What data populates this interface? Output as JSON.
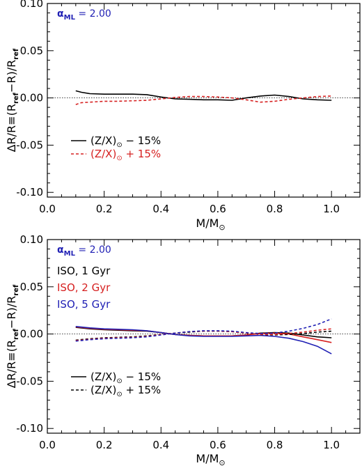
{
  "chart_data": [
    {
      "type": "line",
      "xlim": [
        0.0,
        1.1
      ],
      "ylim": [
        -0.105,
        0.1
      ],
      "xticks": [
        "0.0",
        "0.2",
        "0.4",
        "0.6",
        "0.8",
        "1.0"
      ],
      "yticks": [
        "-0.10",
        "-0.05",
        "0.00",
        "0.05",
        "0.10"
      ],
      "xlabel": "M/M⊙",
      "ylabel": "ΔR/R≡(Rref−R)/Rref",
      "annotation": {
        "alpha": "α",
        "sub": "ML",
        "value": " = 2.00",
        "color": "#1f1fb4"
      },
      "zero_line": true,
      "legend": [
        {
          "label": "(Z/X)⊙ − 15%",
          "style": "solid",
          "color": "#000000"
        },
        {
          "label": "(Z/X)⊙ + 15%",
          "style": "dashed",
          "color": "#d62020"
        }
      ],
      "series": [
        {
          "style": "solid",
          "color": "#000000",
          "x": [
            0.1,
            0.12,
            0.15,
            0.2,
            0.25,
            0.3,
            0.35,
            0.4,
            0.45,
            0.5,
            0.55,
            0.6,
            0.65,
            0.7,
            0.75,
            0.8,
            0.85,
            0.9,
            0.95,
            1.0
          ],
          "y": [
            0.0075,
            0.006,
            0.0045,
            0.004,
            0.004,
            0.004,
            0.0035,
            0.001,
            -0.001,
            -0.0015,
            -0.002,
            -0.002,
            -0.0025,
            0.0,
            0.002,
            0.003,
            0.0015,
            -0.001,
            -0.002,
            -0.0025
          ]
        },
        {
          "style": "dashed",
          "color": "#d62020",
          "x": [
            0.1,
            0.12,
            0.15,
            0.2,
            0.25,
            0.3,
            0.35,
            0.4,
            0.45,
            0.5,
            0.55,
            0.6,
            0.65,
            0.7,
            0.75,
            0.8,
            0.85,
            0.9,
            0.95,
            1.0
          ],
          "y": [
            -0.007,
            -0.005,
            -0.0045,
            -0.0035,
            -0.0035,
            -0.003,
            -0.0025,
            -0.001,
            0.0005,
            0.0015,
            0.0015,
            0.001,
            0.0,
            -0.002,
            -0.0045,
            -0.0035,
            -0.0015,
            0.0,
            0.0015,
            0.002
          ]
        }
      ]
    },
    {
      "type": "line",
      "xlim": [
        0.0,
        1.1
      ],
      "ylim": [
        -0.105,
        0.1
      ],
      "xticks": [
        "0.0",
        "0.2",
        "0.4",
        "0.6",
        "0.8",
        "1.0"
      ],
      "yticks": [
        "-0.10",
        "-0.05",
        "0.00",
        "0.05",
        "0.10"
      ],
      "xlabel": "M/M⊙",
      "ylabel": "ΔR/R≡(Rref−R)/Rref",
      "annotation": {
        "alpha": "α",
        "sub": "ML",
        "value": " = 2.00",
        "color": "#1f1fb4"
      },
      "zero_line": true,
      "iso_labels": [
        {
          "text": "ISO,   1 Gyr",
          "color": "#000000"
        },
        {
          "text": "ISO,   2 Gyr",
          "color": "#d62020"
        },
        {
          "text": "ISO,   5 Gyr",
          "color": "#1f1fb4"
        }
      ],
      "legend": [
        {
          "label": "(Z/X)⊙ − 15%",
          "style": "solid",
          "color": "#000000"
        },
        {
          "label": "(Z/X)⊙ + 15%",
          "style": "dashed",
          "color": "#000000"
        }
      ],
      "series": [
        {
          "style": "solid",
          "color": "#000000",
          "x": [
            0.1,
            0.15,
            0.2,
            0.25,
            0.3,
            0.35,
            0.4,
            0.45,
            0.5,
            0.55,
            0.6,
            0.65,
            0.7,
            0.75,
            0.8,
            0.85,
            0.9,
            0.95,
            1.0
          ],
          "y": [
            0.007,
            0.0055,
            0.0045,
            0.004,
            0.0035,
            0.003,
            0.0015,
            -0.0005,
            -0.0015,
            -0.002,
            -0.002,
            -0.002,
            -0.001,
            0.001,
            0.0015,
            0.001,
            -0.001,
            -0.003,
            -0.004
          ]
        },
        {
          "style": "solid",
          "color": "#d62020",
          "x": [
            0.1,
            0.15,
            0.2,
            0.25,
            0.3,
            0.35,
            0.4,
            0.45,
            0.5,
            0.55,
            0.6,
            0.65,
            0.7,
            0.75,
            0.8,
            0.85,
            0.9,
            0.95,
            1.0
          ],
          "y": [
            0.0075,
            0.006,
            0.005,
            0.0045,
            0.004,
            0.0035,
            0.0015,
            -0.0005,
            -0.0015,
            -0.002,
            -0.002,
            -0.002,
            -0.001,
            0.0005,
            0.001,
            0.0,
            -0.003,
            -0.006,
            -0.009
          ]
        },
        {
          "style": "solid",
          "color": "#1f1fb4",
          "x": [
            0.1,
            0.15,
            0.2,
            0.25,
            0.3,
            0.35,
            0.4,
            0.45,
            0.5,
            0.55,
            0.6,
            0.65,
            0.7,
            0.75,
            0.8,
            0.85,
            0.9,
            0.95,
            1.0
          ],
          "y": [
            0.008,
            0.0065,
            0.0055,
            0.005,
            0.0045,
            0.0035,
            0.0015,
            -0.0005,
            -0.002,
            -0.0025,
            -0.0025,
            -0.0025,
            -0.002,
            -0.0015,
            -0.0025,
            -0.0045,
            -0.008,
            -0.013,
            -0.021
          ]
        },
        {
          "style": "dashed",
          "color": "#000000",
          "x": [
            0.1,
            0.15,
            0.2,
            0.25,
            0.3,
            0.35,
            0.4,
            0.45,
            0.5,
            0.55,
            0.6,
            0.65,
            0.7,
            0.75,
            0.8,
            0.85,
            0.9,
            0.95,
            1.0
          ],
          "y": [
            -0.0065,
            -0.005,
            -0.004,
            -0.0035,
            -0.003,
            -0.002,
            -0.0005,
            0.001,
            0.002,
            0.003,
            0.003,
            0.0025,
            0.001,
            -0.0005,
            -0.001,
            -0.0005,
            0.0005,
            0.002,
            0.003
          ]
        },
        {
          "style": "dashed",
          "color": "#d62020",
          "x": [
            0.1,
            0.15,
            0.2,
            0.25,
            0.3,
            0.35,
            0.4,
            0.45,
            0.5,
            0.55,
            0.6,
            0.65,
            0.7,
            0.75,
            0.8,
            0.85,
            0.9,
            0.95,
            1.0
          ],
          "y": [
            -0.007,
            -0.0055,
            -0.0045,
            -0.004,
            -0.0035,
            -0.0025,
            -0.0005,
            0.001,
            0.0025,
            0.003,
            0.003,
            0.0025,
            0.001,
            -0.0005,
            -0.0005,
            0.0005,
            0.002,
            0.004,
            0.0055
          ]
        },
        {
          "style": "dashed",
          "color": "#1f1fb4",
          "x": [
            0.1,
            0.15,
            0.2,
            0.25,
            0.3,
            0.35,
            0.4,
            0.45,
            0.5,
            0.55,
            0.6,
            0.65,
            0.7,
            0.75,
            0.8,
            0.85,
            0.9,
            0.95,
            1.0
          ],
          "y": [
            -0.0075,
            -0.006,
            -0.005,
            -0.0045,
            -0.004,
            -0.003,
            -0.001,
            0.001,
            0.0025,
            0.0035,
            0.0035,
            0.003,
            0.0015,
            0.0005,
            0.001,
            0.003,
            0.006,
            0.01,
            0.016
          ]
        }
      ]
    }
  ]
}
